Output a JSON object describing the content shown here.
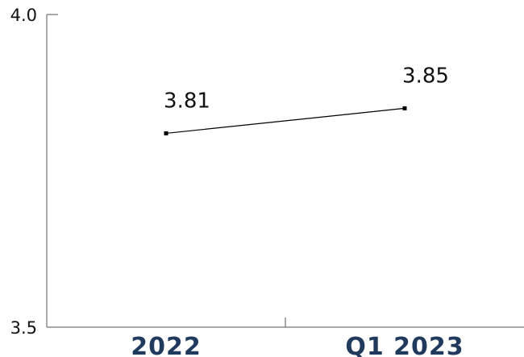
{
  "chart_data": {
    "type": "line",
    "categories": [
      "2022",
      "Q1 2023"
    ],
    "series": [
      {
        "values": [
          3.81,
          3.85
        ],
        "labels": [
          "3.81",
          "3.85"
        ]
      }
    ],
    "ylim": [
      3.5,
      4.0
    ],
    "yticks": [
      "3.5",
      "4.0"
    ],
    "grid": false,
    "line_color": "#000000",
    "xtick_color": "#1f3a5c",
    "title": "",
    "xlabel": "",
    "ylabel": ""
  }
}
